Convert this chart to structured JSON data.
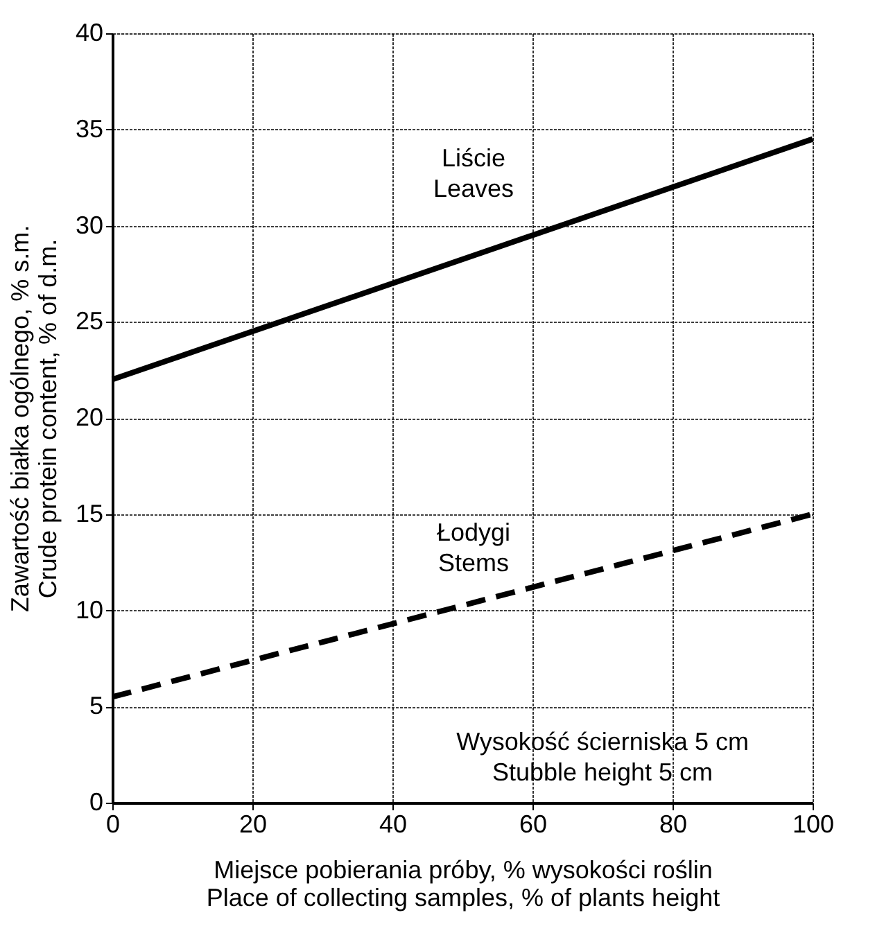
{
  "chart_data": {
    "type": "line",
    "xlabel": "Miejsce pobierania próby, % wysokości roślin\nPlace of collecting samples, % of plants height",
    "ylabel": "Zawartość białka ogólnego, % s.m.\nCrude protein content, % of d.m.",
    "x": [
      0,
      100
    ],
    "series": [
      {
        "name": "Liście\nLeaves",
        "color": "#000000",
        "values": [
          22,
          34.5
        ],
        "line_style": "solid"
      },
      {
        "name": "Łodygi\nStems",
        "color": "#000000",
        "values": [
          5.5,
          15
        ],
        "line_style": "dashed"
      }
    ],
    "xlim": [
      0,
      100
    ],
    "xticks": [
      0,
      20,
      40,
      60,
      80,
      100
    ],
    "ylim": [
      0,
      40
    ],
    "yticks": [
      0,
      5,
      10,
      15,
      20,
      25,
      30,
      35,
      40
    ],
    "grid": true,
    "marker": "none",
    "annotations": [
      "Wysokość ścierniska 5 cm\nStubble height 5 cm"
    ]
  }
}
